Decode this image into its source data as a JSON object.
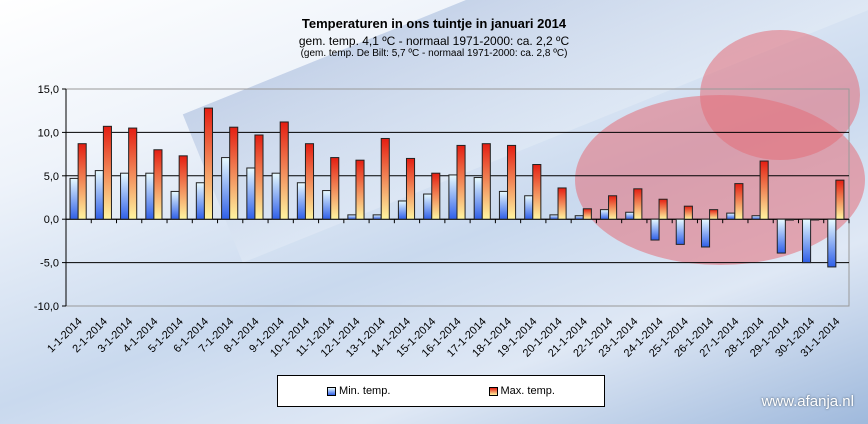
{
  "chart_data": {
    "type": "bar",
    "title": "Temperaturen  in ons tuintje  in januari  2014",
    "subtitle": "gem.  temp.  4,1 ºC  - normaal  1971-2000:  ca. 2,2 ºC",
    "subtitle2": "(gem. temp. De Bilt:  5,7 ºC - normaal 1971-2000: ca. 2,8 ºC)",
    "xlabel": "",
    "ylabel": "",
    "ylim": [
      -10,
      15
    ],
    "yticks": [
      15,
      10,
      5,
      0,
      -5,
      -10
    ],
    "ytick_labels": [
      "15,0",
      "10,0",
      "5,0",
      "0,0",
      "-5,0",
      "-10,0"
    ],
    "grid": true,
    "legend_position": "bottom",
    "categories": [
      "1-1-2014",
      "2-1-2014",
      "3-1-2014",
      "4-1-2014",
      "5-1-2014",
      "6-1-2014",
      "7-1-2014",
      "8-1-2014",
      "9-1-2014",
      "10-1-2014",
      "11-1-2014",
      "12-1-2014",
      "13-1-2014",
      "14-1-2014",
      "15-1-2014",
      "16-1-2014",
      "17-1-2014",
      "18-1-2014",
      "19-1-2014",
      "20-1-2014",
      "21-1-2014",
      "22-1-2014",
      "23-1-2014",
      "24-1-2014",
      "25-1-2014",
      "26-1-2014",
      "27-1-2014",
      "28-1-2014",
      "29-1-2014",
      "30-1-2014",
      "31-1-2014"
    ],
    "series": [
      {
        "name": "Min. temp.",
        "color": "#4a78e8",
        "values": [
          4.7,
          5.6,
          5.3,
          5.3,
          3.2,
          4.2,
          7.1,
          5.9,
          5.3,
          4.2,
          3.3,
          0.5,
          0.5,
          2.1,
          2.9,
          5.1,
          4.8,
          3.2,
          2.7,
          0.5,
          0.4,
          1.1,
          0.8,
          -2.4,
          -2.9,
          -3.2,
          0.7,
          0.4,
          -3.9,
          -5.0,
          -5.5
        ]
      },
      {
        "name": "Max. temp.",
        "color": "#e8301c",
        "values": [
          8.7,
          10.7,
          10.5,
          8.0,
          7.3,
          12.8,
          10.6,
          9.7,
          11.2,
          8.7,
          7.1,
          6.8,
          9.3,
          7.0,
          5.3,
          8.5,
          8.7,
          8.5,
          6.3,
          3.6,
          1.2,
          2.7,
          3.5,
          2.3,
          1.5,
          1.1,
          4.1,
          6.7,
          -0.1,
          0.0,
          4.5
        ]
      }
    ]
  },
  "watermark": "www.afanja.nl"
}
